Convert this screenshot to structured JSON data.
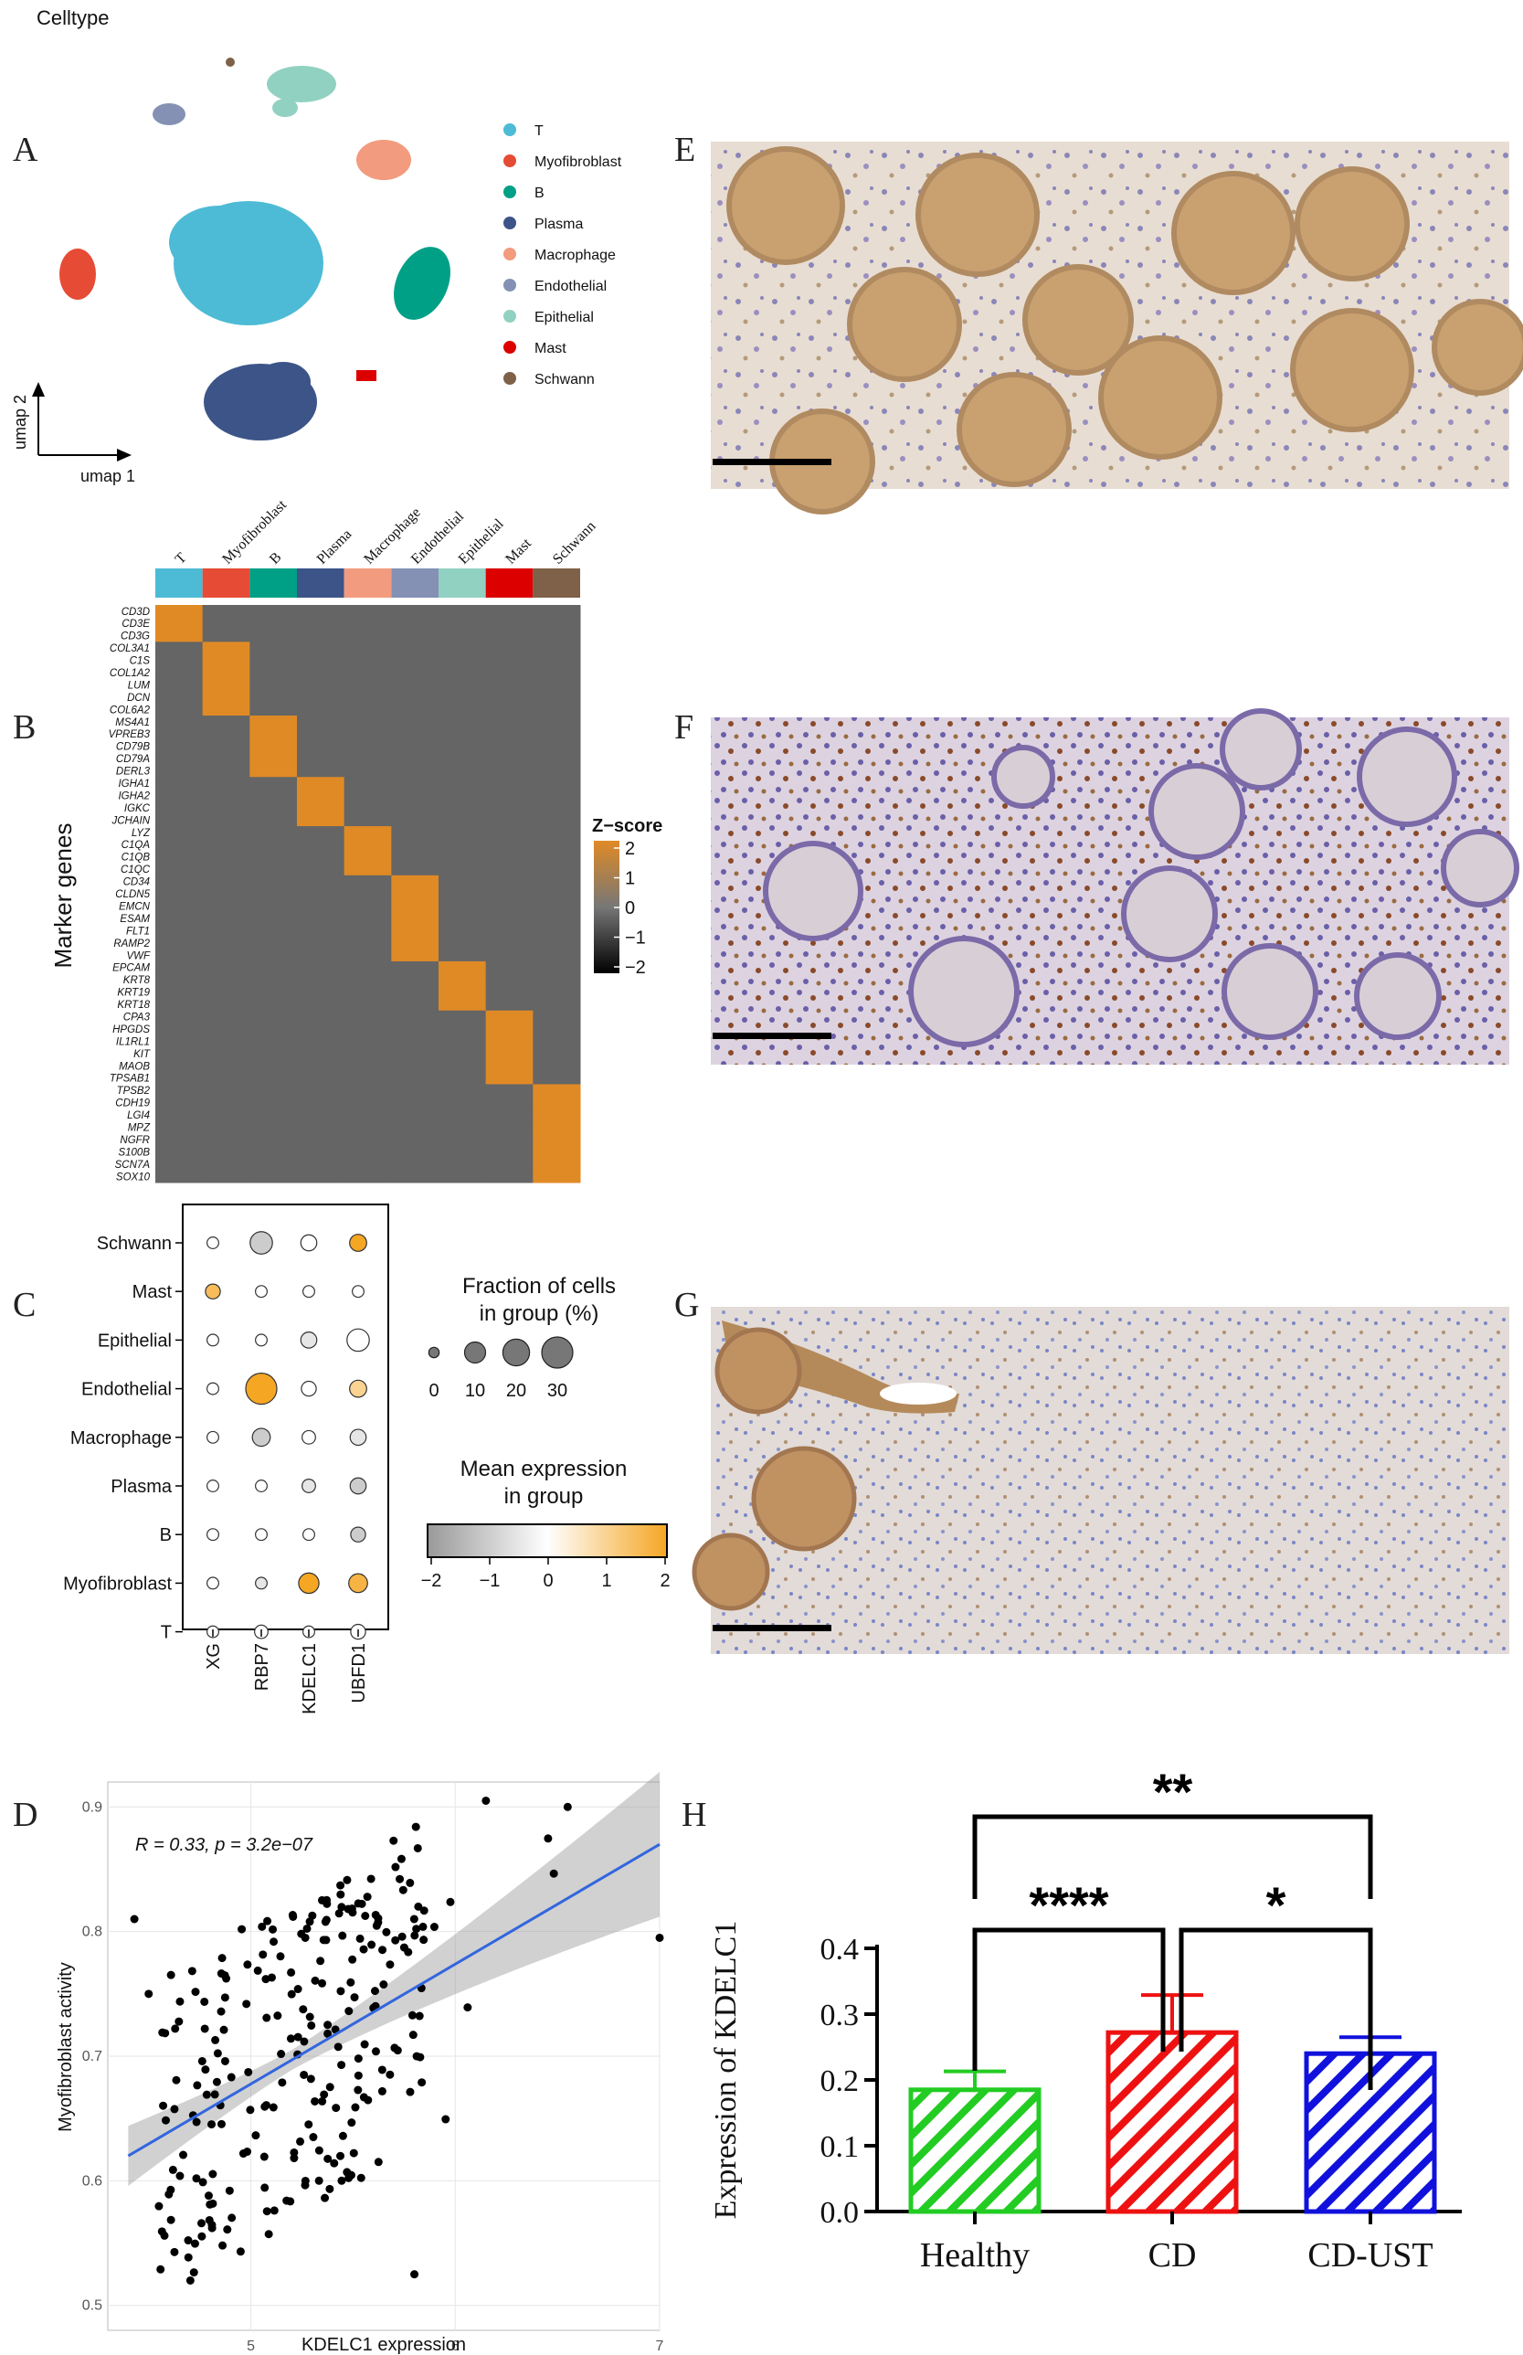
{
  "panel_letters": [
    "A",
    "B",
    "C",
    "D",
    "E",
    "F",
    "G",
    "H"
  ],
  "chart_data": [
    {
      "type": "scatter",
      "panel": "A",
      "title": "Celltype",
      "xlabel": "umap 1",
      "ylabel": "umap 2",
      "legend_position": "right",
      "series": [
        {
          "name": "T",
          "color": "#4DBBD5"
        },
        {
          "name": "Myofibroblast",
          "color": "#E64B35"
        },
        {
          "name": "B",
          "color": "#00A087"
        },
        {
          "name": "Plasma",
          "color": "#3C5488"
        },
        {
          "name": "Macrophage",
          "color": "#F39B7F"
        },
        {
          "name": "Endothelial",
          "color": "#8491B4"
        },
        {
          "name": "Epithelial",
          "color": "#91D1C2"
        },
        {
          "name": "Mast",
          "color": "#DC0000"
        },
        {
          "name": "Schwann",
          "color": "#7E6148"
        }
      ]
    },
    {
      "type": "heatmap",
      "panel": "B",
      "ylabel": "Marker genes",
      "columns": [
        "T",
        "Myofibroblast",
        "B",
        "Plasma",
        "Macrophage",
        "Endothelial",
        "Epithelial",
        "Mast",
        "Schwann"
      ],
      "column_colors": [
        "#4DBBD5",
        "#E64B35",
        "#00A087",
        "#3C5488",
        "#F39B7F",
        "#8491B4",
        "#91D1C2",
        "#DC0000",
        "#7E6148"
      ],
      "genes": [
        "CD3D",
        "CD3E",
        "CD3G",
        "COL3A1",
        "C1S",
        "COL1A2",
        "LUM",
        "DCN",
        "COL6A2",
        "MS4A1",
        "VPREB3",
        "CD79B",
        "CD79A",
        "DERL3",
        "IGHA1",
        "IGHA2",
        "IGKC",
        "JCHAIN",
        "LYZ",
        "C1QA",
        "C1QB",
        "C1QC",
        "CD34",
        "CLDN5",
        "EMCN",
        "ESAM",
        "FLT1",
        "RAMP2",
        "VWF",
        "EPCAM",
        "KRT8",
        "KRT19",
        "KRT18",
        "CPA3",
        "HPGDS",
        "IL1RL1",
        "KIT",
        "MAOB",
        "TPSAB1",
        "TPSB2",
        "CDH19",
        "LGI4",
        "MPZ",
        "NGFR",
        "S100B",
        "SCN7A",
        "SOX10"
      ],
      "gene_group_sizes": [
        3,
        6,
        5,
        4,
        4,
        7,
        4,
        6,
        8
      ],
      "legend_title": "Z−score",
      "legend_ticks": [
        "2",
        "1",
        "0",
        "−1",
        "−2"
      ],
      "zlim": [
        -2,
        2
      ]
    },
    {
      "type": "scatter",
      "subtype": "dotplot",
      "panel": "C",
      "genes": [
        "XG",
        "RBP7",
        "KDELC1",
        "UBFD1"
      ],
      "celltypes": [
        "Schwann",
        "Mast",
        "Epithelial",
        "Endothelial",
        "Macrophage",
        "Plasma",
        "B",
        "Myofibroblast",
        "T"
      ],
      "fraction_pct": [
        [
          1,
          12,
          4,
          5
        ],
        [
          3,
          1,
          1,
          1
        ],
        [
          1,
          1,
          4,
          12
        ],
        [
          1,
          30,
          3,
          5
        ],
        [
          1,
          6,
          2,
          4
        ],
        [
          1,
          1,
          2,
          4
        ],
        [
          1,
          1,
          1,
          3
        ],
        [
          1,
          1,
          9,
          7
        ],
        [
          1,
          2,
          1,
          3
        ]
      ],
      "mean_expression": [
        [
          0,
          -1,
          0,
          2
        ],
        [
          1.5,
          0,
          0,
          0
        ],
        [
          0,
          0,
          -0.5,
          0
        ],
        [
          0,
          2,
          0,
          1
        ],
        [
          0,
          -1,
          0,
          -0.5
        ],
        [
          0,
          0,
          -0.5,
          -1
        ],
        [
          0,
          0,
          0,
          -1
        ],
        [
          0,
          -0.5,
          2,
          1.7
        ],
        [
          0,
          0,
          0,
          0
        ]
      ],
      "size_legend_title": "Fraction of cells\nin group (%)",
      "size_legend_values": [
        0,
        10,
        20,
        30
      ],
      "color_legend_title": "Mean expression\nin group",
      "color_legend_ticks": [
        -2,
        -1,
        0,
        1,
        2
      ]
    },
    {
      "type": "scatter",
      "panel": "D",
      "xlabel": "KDELC1 expression",
      "ylabel": "Myofibroblast activity",
      "annotation": "R = 0.33, p = 3.2e−07",
      "xlim": [
        4.3,
        7.0
      ],
      "ylim": [
        0.48,
        0.92
      ],
      "xticks": [
        5,
        6,
        7
      ],
      "yticks": [
        0.5,
        0.6,
        0.7,
        0.8,
        0.9
      ],
      "fit_line": {
        "x": [
          4.4,
          7.0
        ],
        "y": [
          0.62,
          0.87
        ]
      },
      "grid": true
    },
    {
      "type": "bar",
      "panel": "H",
      "categories": [
        "Healthy",
        "CD",
        "CD-UST"
      ],
      "values": [
        0.185,
        0.272,
        0.24
      ],
      "errors": [
        0.028,
        0.057,
        0.025
      ],
      "colors": [
        "#22cc22",
        "#ee1111",
        "#1111dd"
      ],
      "ylabel": "Expression of KDELC1",
      "ylim": [
        0,
        0.4
      ],
      "yticks": [
        "0.0",
        "0.1",
        "0.2",
        "0.3",
        "0.4"
      ],
      "significance": [
        {
          "from": "Healthy",
          "to": "CD",
          "label": "****"
        },
        {
          "from": "CD",
          "to": "CD-UST",
          "label": "*"
        },
        {
          "from": "Healthy",
          "to": "CD-UST",
          "label": "**"
        }
      ]
    }
  ]
}
